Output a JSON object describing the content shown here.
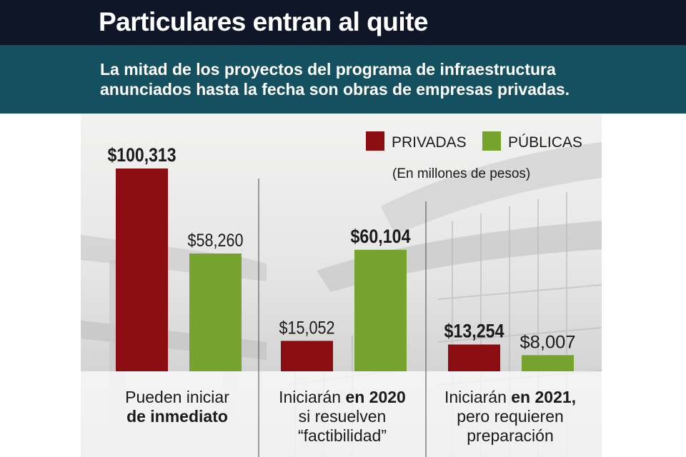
{
  "header": {
    "title": "Particulares entran al quite",
    "subtitle_line1": "La mitad de los proyectos del programa de infraestructura",
    "subtitle_line2": "anunciados hasta la fecha son obras de empresas privadas."
  },
  "chart_data": {
    "type": "bar",
    "categories": [
      {
        "line1": "Pueden iniciar",
        "line2": "de inmediato",
        "line3": ""
      },
      {
        "line1": "Iniciarán en 2020",
        "line2": "si resuelven",
        "line3": "“factibilidad”"
      },
      {
        "line1": "Iniciarán en 2021,",
        "line2": "pero requieren",
        "line3": "preparación"
      }
    ],
    "series": [
      {
        "name": "PRIVADAS",
        "color": "#8b0d12",
        "values": [
          100313,
          15052,
          13254
        ],
        "labels": [
          "$100,313",
          "$15,052",
          "$13,254"
        ]
      },
      {
        "name": "PÚBLICAS",
        "color": "#76a22e",
        "values": [
          58260,
          60104,
          8007
        ],
        "labels": [
          "$58,260",
          "$60,104",
          "$8,007"
        ]
      }
    ],
    "bold_labels": [
      [
        true,
        false,
        true
      ],
      [
        false,
        true,
        false
      ]
    ],
    "unit_note": "(En millones de pesos)",
    "ylim": [
      0,
      100313
    ],
    "legend_position": "top-right"
  }
}
